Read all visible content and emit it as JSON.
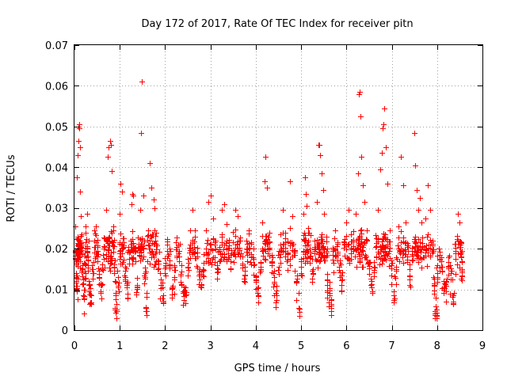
{
  "chart_data": {
    "type": "scatter",
    "title": "Day 172 of 2017, Rate Of TEC Index for receiver pitn",
    "xlabel": "GPS time / hours",
    "ylabel": "ROTI / TECUs",
    "xlim": [
      0,
      9
    ],
    "ylim": [
      0,
      0.07
    ],
    "xticks": [
      0,
      1,
      2,
      3,
      4,
      5,
      6,
      7,
      8,
      9
    ],
    "xtick_labels": [
      "0",
      "1",
      "2",
      "3",
      "4",
      "5",
      "6",
      "7",
      "8",
      "9"
    ],
    "yticks": [
      0,
      0.01,
      0.02,
      0.03,
      0.04,
      0.05,
      0.06,
      0.07
    ],
    "ytick_labels": [
      "0",
      "0.01",
      "0.02",
      "0.03",
      "0.04",
      "0.05",
      "0.06",
      "0.07"
    ],
    "grid": true,
    "marker": "+",
    "color": "#ff0000",
    "series": [
      {
        "name": "ROTI",
        "points": [
          [
            0.02,
            0.0255
          ],
          [
            0.03,
            0.019
          ],
          [
            0.04,
            0.013
          ],
          [
            0.05,
            0.0095
          ],
          [
            0.06,
            0.0375
          ],
          [
            0.07,
            0.043
          ],
          [
            0.08,
            0.0465
          ],
          [
            0.09,
            0.05
          ],
          [
            0.1,
            0.0505
          ],
          [
            0.11,
            0.0495
          ],
          [
            0.12,
            0.045
          ],
          [
            0.13,
            0.034
          ],
          [
            0.14,
            0.028
          ],
          [
            0.15,
            0.021
          ],
          [
            0.17,
            0.016
          ],
          [
            0.19,
            0.0125
          ],
          [
            0.21,
            0.0075
          ],
          [
            0.23,
            0.0145
          ],
          [
            0.25,
            0.0255
          ],
          [
            0.28,
            0.0285
          ],
          [
            0.3,
            0.018
          ],
          [
            0.33,
            0.011
          ],
          [
            0.36,
            0.0085
          ],
          [
            0.4,
            0.015
          ],
          [
            0.44,
            0.0245
          ],
          [
            0.47,
            0.0255
          ],
          [
            0.5,
            0.0195
          ],
          [
            0.54,
            0.013
          ],
          [
            0.58,
            0.0095
          ],
          [
            0.62,
            0.015
          ],
          [
            0.66,
            0.0225
          ],
          [
            0.7,
            0.0295
          ],
          [
            0.74,
            0.0425
          ],
          [
            0.76,
            0.045
          ],
          [
            0.78,
            0.0465
          ],
          [
            0.8,
            0.0455
          ],
          [
            0.82,
            0.039
          ],
          [
            0.85,
            0.0255
          ],
          [
            0.88,
            0.0155
          ],
          [
            0.9,
            0.0075
          ],
          [
            0.93,
            0.005
          ],
          [
            0.96,
            0.0105
          ],
          [
            1.0,
            0.0285
          ],
          [
            1.02,
            0.036
          ],
          [
            1.05,
            0.034
          ],
          [
            1.08,
            0.0225
          ],
          [
            1.12,
            0.0145
          ],
          [
            1.16,
            0.0105
          ],
          [
            1.2,
            0.019
          ],
          [
            1.25,
            0.031
          ],
          [
            1.28,
            0.0335
          ],
          [
            1.3,
            0.033
          ],
          [
            1.34,
            0.02
          ],
          [
            1.38,
            0.011
          ],
          [
            1.42,
            0.0205
          ],
          [
            1.45,
            0.0295
          ],
          [
            1.47,
            0.0485
          ],
          [
            1.48,
            0.061
          ],
          [
            1.52,
            0.033
          ],
          [
            1.55,
            0.014
          ],
          [
            1.58,
            0.0055
          ],
          [
            1.62,
            0.0245
          ],
          [
            1.66,
            0.041
          ],
          [
            1.7,
            0.035
          ],
          [
            1.74,
            0.032
          ],
          [
            1.77,
            0.03
          ],
          [
            1.8,
            0.024
          ],
          [
            1.85,
            0.017
          ],
          [
            1.9,
            0.011
          ],
          [
            1.95,
            0.0085
          ],
          [
            2.0,
            0.014
          ],
          [
            2.05,
            0.0195
          ],
          [
            2.1,
            0.016
          ],
          [
            2.15,
            0.0105
          ],
          [
            2.2,
            0.0125
          ],
          [
            2.25,
            0.0205
          ],
          [
            2.3,
            0.018
          ],
          [
            2.35,
            0.0135
          ],
          [
            2.4,
            0.0095
          ],
          [
            2.45,
            0.0085
          ],
          [
            2.5,
            0.0155
          ],
          [
            2.55,
            0.0245
          ],
          [
            2.6,
            0.0295
          ],
          [
            2.65,
            0.0245
          ],
          [
            2.7,
            0.019
          ],
          [
            2.75,
            0.0135
          ],
          [
            2.8,
            0.011
          ],
          [
            2.85,
            0.0165
          ],
          [
            2.9,
            0.0245
          ],
          [
            2.95,
            0.0315
          ],
          [
            3.0,
            0.033
          ],
          [
            3.05,
            0.0275
          ],
          [
            3.1,
            0.0215
          ],
          [
            3.15,
            0.016
          ],
          [
            3.2,
            0.0195
          ],
          [
            3.25,
            0.0295
          ],
          [
            3.3,
            0.031
          ],
          [
            3.35,
            0.026
          ],
          [
            3.4,
            0.0215
          ],
          [
            3.45,
            0.017
          ],
          [
            3.5,
            0.0215
          ],
          [
            3.55,
            0.0295
          ],
          [
            3.6,
            0.028
          ],
          [
            3.65,
            0.022
          ],
          [
            3.7,
            0.018
          ],
          [
            3.75,
            0.0135
          ],
          [
            3.8,
            0.02
          ],
          [
            3.85,
            0.0245
          ],
          [
            3.9,
            0.0215
          ],
          [
            3.95,
            0.016
          ],
          [
            4.0,
            0.0125
          ],
          [
            4.05,
            0.0085
          ],
          [
            4.1,
            0.015
          ],
          [
            4.15,
            0.0265
          ],
          [
            4.2,
            0.0365
          ],
          [
            4.22,
            0.0425
          ],
          [
            4.25,
            0.035
          ],
          [
            4.3,
            0.024
          ],
          [
            4.35,
            0.0165
          ],
          [
            4.4,
            0.0115
          ],
          [
            4.45,
            0.0085
          ],
          [
            4.5,
            0.0155
          ],
          [
            4.55,
            0.0235
          ],
          [
            4.6,
            0.0295
          ],
          [
            4.65,
            0.024
          ],
          [
            4.7,
            0.019
          ],
          [
            4.75,
            0.0365
          ],
          [
            4.8,
            0.028
          ],
          [
            4.85,
            0.0185
          ],
          [
            4.9,
            0.012
          ],
          [
            4.95,
            0.0055
          ],
          [
            5.0,
            0.0155
          ],
          [
            5.05,
            0.0285
          ],
          [
            5.08,
            0.0375
          ],
          [
            5.1,
            0.0335
          ],
          [
            5.12,
            0.0305
          ],
          [
            5.15,
            0.025
          ],
          [
            5.2,
            0.019
          ],
          [
            5.25,
            0.0145
          ],
          [
            5.3,
            0.022
          ],
          [
            5.35,
            0.0315
          ],
          [
            5.38,
            0.0455
          ],
          [
            5.4,
            0.0455
          ],
          [
            5.42,
            0.043
          ],
          [
            5.45,
            0.0385
          ],
          [
            5.48,
            0.0345
          ],
          [
            5.5,
            0.0285
          ],
          [
            5.55,
            0.023
          ],
          [
            5.58,
            0.0125
          ],
          [
            5.62,
            0.0085
          ],
          [
            5.66,
            0.0065
          ],
          [
            5.7,
            0.0185
          ],
          [
            5.75,
            0.0245
          ],
          [
            5.8,
            0.0215
          ],
          [
            5.85,
            0.0165
          ],
          [
            5.9,
            0.0125
          ],
          [
            5.95,
            0.0215
          ],
          [
            6.0,
            0.0265
          ],
          [
            6.05,
            0.0295
          ],
          [
            6.1,
            0.0235
          ],
          [
            6.15,
            0.0195
          ],
          [
            6.2,
            0.0285
          ],
          [
            6.25,
            0.0385
          ],
          [
            6.28,
            0.058
          ],
          [
            6.29,
            0.0585
          ],
          [
            6.3,
            0.0525
          ],
          [
            6.33,
            0.0425
          ],
          [
            6.36,
            0.0355
          ],
          [
            6.4,
            0.0315
          ],
          [
            6.45,
            0.0245
          ],
          [
            6.5,
            0.0165
          ],
          [
            6.55,
            0.0105
          ],
          [
            6.6,
            0.0155
          ],
          [
            6.65,
            0.0225
          ],
          [
            6.7,
            0.0295
          ],
          [
            6.75,
            0.0395
          ],
          [
            6.78,
            0.0435
          ],
          [
            6.8,
            0.0495
          ],
          [
            6.82,
            0.0505
          ],
          [
            6.84,
            0.0545
          ],
          [
            6.86,
            0.045
          ],
          [
            6.9,
            0.036
          ],
          [
            6.95,
            0.0245
          ],
          [
            7.0,
            0.0165
          ],
          [
            7.05,
            0.0095
          ],
          [
            7.1,
            0.0155
          ],
          [
            7.15,
            0.0255
          ],
          [
            7.2,
            0.0425
          ],
          [
            7.25,
            0.0355
          ],
          [
            7.3,
            0.0265
          ],
          [
            7.35,
            0.0195
          ],
          [
            7.4,
            0.0135
          ],
          [
            7.45,
            0.0195
          ],
          [
            7.5,
            0.0485
          ],
          [
            7.52,
            0.0405
          ],
          [
            7.55,
            0.0345
          ],
          [
            7.58,
            0.0295
          ],
          [
            7.62,
            0.0325
          ],
          [
            7.66,
            0.0265
          ],
          [
            7.7,
            0.0205
          ],
          [
            7.75,
            0.0275
          ],
          [
            7.8,
            0.0355
          ],
          [
            7.85,
            0.0295
          ],
          [
            7.9,
            0.022
          ],
          [
            7.93,
            0.011
          ],
          [
            7.96,
            0.004
          ],
          [
            7.98,
            0.0035
          ],
          [
            8.0,
            0.013
          ],
          [
            8.05,
            0.0175
          ],
          [
            8.1,
            0.0145
          ],
          [
            8.15,
            0.0105
          ],
          [
            8.2,
            0.0095
          ],
          [
            8.25,
            0.0155
          ],
          [
            8.3,
            0.0125
          ],
          [
            8.35,
            0.0085
          ],
          [
            8.4,
            0.0175
          ],
          [
            8.45,
            0.0285
          ],
          [
            8.5,
            0.0265
          ],
          [
            8.52,
            0.0215
          ],
          [
            8.54,
            0.017
          ],
          [
            8.55,
            0.0145
          ]
        ]
      }
    ]
  }
}
